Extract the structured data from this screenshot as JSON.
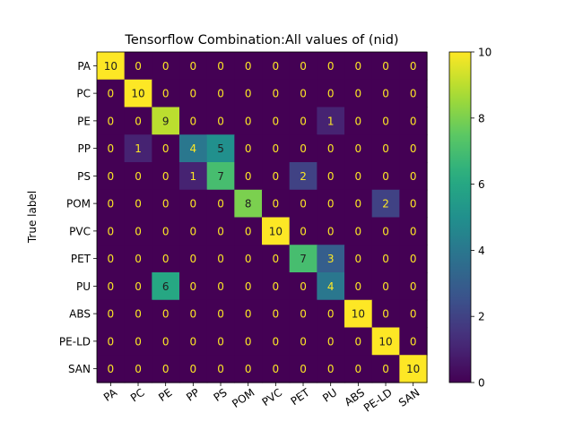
{
  "chart_data": {
    "type": "heatmap",
    "title": "Tensorflow Combination:All values of (nid)",
    "xlabel": "",
    "ylabel": "True label",
    "row_labels": [
      "PA",
      "PC",
      "PE",
      "PP",
      "PS",
      "POM",
      "PVC",
      "PET",
      "PU",
      "ABS",
      "PE-LD",
      "SAN"
    ],
    "col_labels": [
      "PA",
      "PC",
      "PE",
      "PP",
      "PS",
      "POM",
      "PVC",
      "PET",
      "PU",
      "ABS",
      "PE-LD",
      "SAN"
    ],
    "values": [
      [
        10,
        0,
        0,
        0,
        0,
        0,
        0,
        0,
        0,
        0,
        0,
        0
      ],
      [
        0,
        10,
        0,
        0,
        0,
        0,
        0,
        0,
        0,
        0,
        0,
        0
      ],
      [
        0,
        0,
        9,
        0,
        0,
        0,
        0,
        0,
        1,
        0,
        0,
        0
      ],
      [
        0,
        1,
        0,
        4,
        5,
        0,
        0,
        0,
        0,
        0,
        0,
        0
      ],
      [
        0,
        0,
        0,
        1,
        7,
        0,
        0,
        2,
        0,
        0,
        0,
        0
      ],
      [
        0,
        0,
        0,
        0,
        0,
        8,
        0,
        0,
        0,
        0,
        2,
        0
      ],
      [
        0,
        0,
        0,
        0,
        0,
        0,
        10,
        0,
        0,
        0,
        0,
        0
      ],
      [
        0,
        0,
        0,
        0,
        0,
        0,
        0,
        7,
        3,
        0,
        0,
        0
      ],
      [
        0,
        0,
        6,
        0,
        0,
        0,
        0,
        0,
        4,
        0,
        0,
        0
      ],
      [
        0,
        0,
        0,
        0,
        0,
        0,
        0,
        0,
        0,
        10,
        0,
        0
      ],
      [
        0,
        0,
        0,
        0,
        0,
        0,
        0,
        0,
        0,
        0,
        10,
        0
      ],
      [
        0,
        0,
        0,
        0,
        0,
        0,
        0,
        0,
        0,
        0,
        0,
        10
      ]
    ],
    "colorbar": {
      "min": 0,
      "max": 10,
      "ticks": [
        0,
        2,
        4,
        6,
        8,
        10
      ]
    },
    "colormap": "viridis",
    "text_color_low": "#fde725",
    "text_color_high": "#1f1f1f"
  }
}
